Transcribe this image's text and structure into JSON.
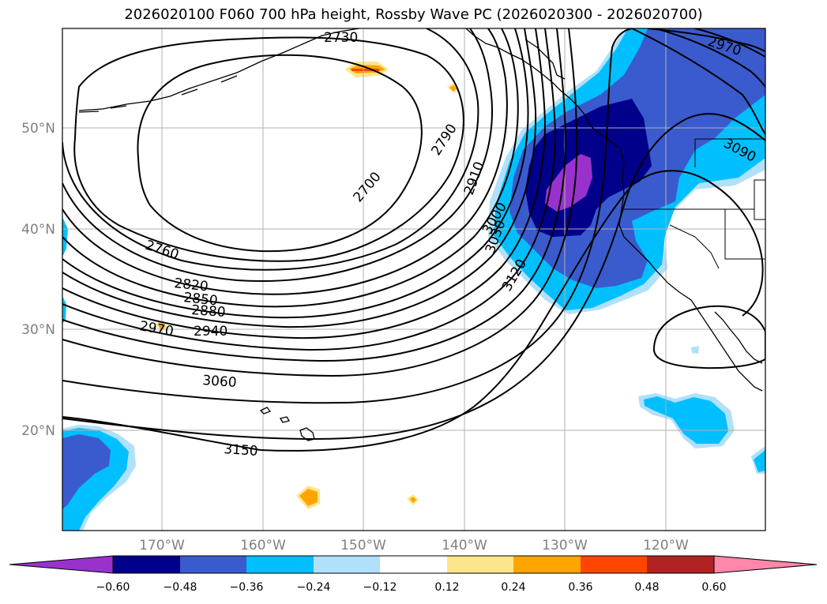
{
  "title": "2026020100 F060 700 hPa height, Rossby Wave PC (2026020300 - 2026020700)",
  "map": {
    "lon_ticks": [
      "170°W",
      "160°W",
      "150°W",
      "140°W",
      "130°W",
      "120°W"
    ],
    "lat_ticks": [
      "50°N",
      "40°N",
      "30°N",
      "20°N"
    ],
    "contour_labels": [
      "2730",
      "2970",
      "2790",
      "2700",
      "3090",
      "2910",
      "3000",
      "3030",
      "2760",
      "3120",
      "2820",
      "2850",
      "2880",
      "2970",
      "2940",
      "3060",
      "3150"
    ]
  },
  "colorbar": {
    "ticks": [
      "−0.60",
      "−0.48",
      "−0.36",
      "−0.24",
      "−0.12",
      "0.12",
      "0.24",
      "0.36",
      "0.48",
      "0.60"
    ],
    "colors": [
      "#9932cc",
      "#00008b",
      "#3a5bcd",
      "#00bfff",
      "#b0e0fa",
      "#ffffff",
      "#fde68a",
      "#ffa500",
      "#ff4500",
      "#b22222",
      "#ff88aa"
    ]
  }
}
